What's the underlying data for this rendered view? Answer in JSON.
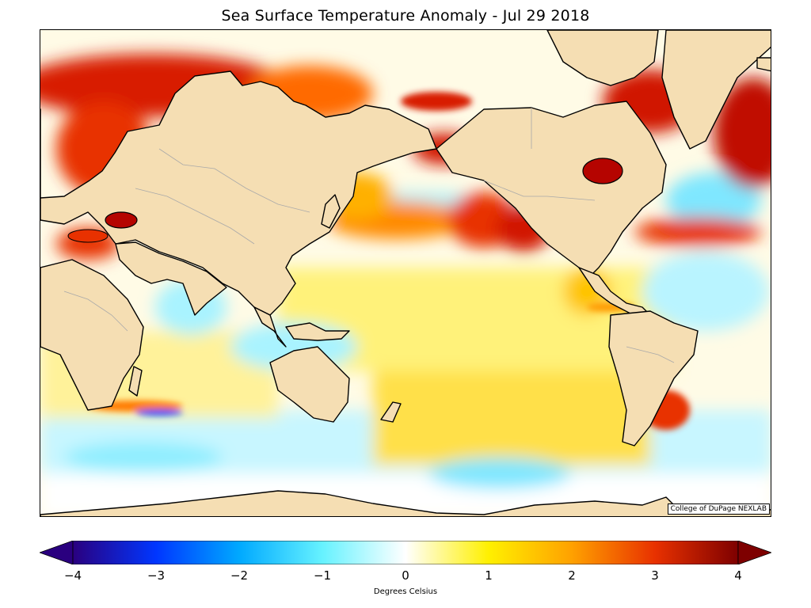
{
  "title": "Sea Surface Temperature Anomaly - Jul 29 2018",
  "credit": "College of DuPage NEXLAB",
  "colorbar": {
    "label": "Degrees Celsius",
    "min": -4,
    "max": 4,
    "ticks": [
      {
        "value": -4,
        "label": "−4"
      },
      {
        "value": -3,
        "label": "−3"
      },
      {
        "value": -2,
        "label": "−2"
      },
      {
        "value": -1,
        "label": "−1"
      },
      {
        "value": 0,
        "label": "0"
      },
      {
        "value": 1,
        "label": "1"
      },
      {
        "value": 2,
        "label": "2"
      },
      {
        "value": 3,
        "label": "3"
      },
      {
        "value": 4,
        "label": "4"
      }
    ],
    "extend": "both",
    "colors": [
      "#2a007f",
      "#0036ff",
      "#00a9ff",
      "#66f2ff",
      "#ffffff",
      "#fff000",
      "#ffa100",
      "#e83100",
      "#7e0000"
    ]
  },
  "map": {
    "land_color": "#f5deb3",
    "coastline_color": "#000000",
    "border_color": "#a9a9a9"
  }
}
